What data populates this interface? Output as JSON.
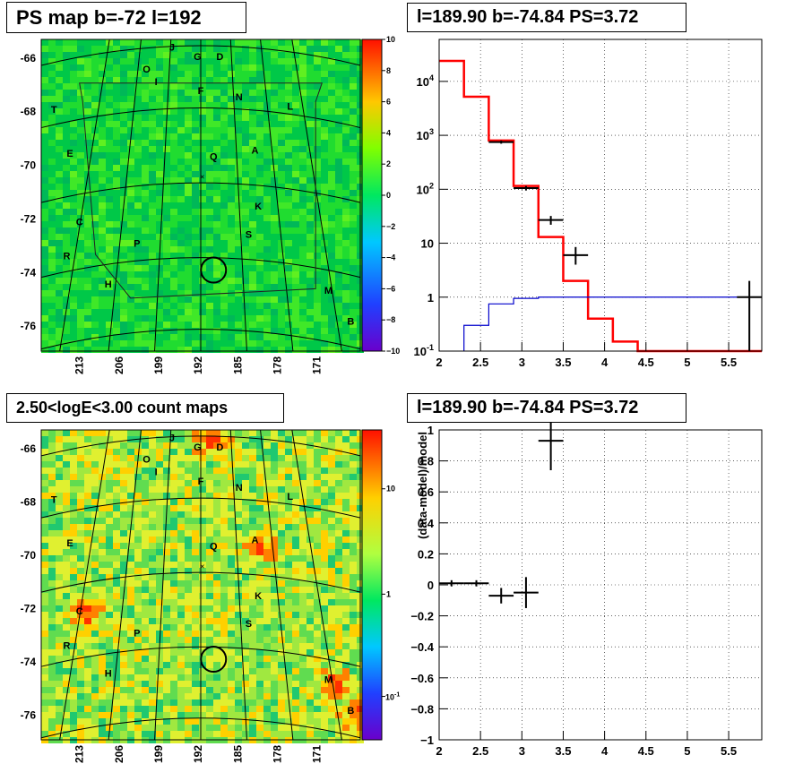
{
  "titles": {
    "panel1": "PS map b=-72 l=192",
    "panel2": "l=189.90 b=-74.84 PS=3.72",
    "panel3": "2.50<logE<3.00 count maps",
    "panel4": "l=189.90 b=-74.84 PS=3.72"
  },
  "map_axes": {
    "y_ticks": [
      "-66",
      "-68",
      "-70",
      "-72",
      "-74",
      "-76"
    ],
    "x_ticks": [
      "213",
      "206",
      "199",
      "192",
      "185",
      "178",
      "171"
    ]
  },
  "source_labels": [
    "J",
    "G",
    "D",
    "O",
    "I",
    "F",
    "N",
    "T",
    "L",
    "E",
    "Q",
    "A",
    "K",
    "C",
    "S",
    "P",
    "R",
    "H",
    "M",
    "B"
  ],
  "colorbar1": {
    "ticks": [
      "10",
      "8",
      "6",
      "4",
      "2",
      "0",
      "−2",
      "−4",
      "−6",
      "−8",
      "−10"
    ]
  },
  "colorbar2": {
    "ticks": [
      "10",
      "1",
      "10^-1"
    ]
  },
  "colors": {
    "red_model": "#ff0000",
    "blue_model": "#0000cc",
    "data": "#000000"
  },
  "chart_data": [
    {
      "type": "heatmap",
      "title": "PS map b=-72 l=192",
      "xlabel": "",
      "ylabel": "",
      "x_ticks": [
        "213",
        "206",
        "199",
        "192",
        "185",
        "178",
        "171"
      ],
      "y_ticks": [
        "-66",
        "-68",
        "-70",
        "-72",
        "-74",
        "-76"
      ],
      "colorbar_range": [
        -10,
        10
      ]
    },
    {
      "type": "line",
      "title": "l=189.90 b=-74.84 PS=3.72",
      "xlabel": "",
      "ylabel": "",
      "xlim": [
        2,
        5.9
      ],
      "ylim": [
        0.1,
        60000
      ],
      "yscale": "log",
      "x_ticks": [
        "2",
        "2.5",
        "3",
        "3.5",
        "4",
        "4.5",
        "5",
        "5.5"
      ],
      "y_ticks": [
        "10^-1",
        "1",
        "10",
        "10^2",
        "10^3",
        "10^4"
      ],
      "series": [
        {
          "edges": [
            2.0,
            2.3,
            2.6,
            2.9,
            3.2,
            3.5,
            3.8,
            4.1,
            4.4,
            5.9
          ],
          "values": [
            24000,
            5200,
            800,
            115,
            13,
            2,
            0.4,
            0.15,
            0.1
          ]
        },
        {
          "edges": [
            2.3,
            2.6,
            2.9,
            3.2,
            5.9
          ],
          "values": [
            0.3,
            0.75,
            0.95,
            1.0
          ]
        },
        {
          "x": [
            2.75,
            3.05,
            3.35,
            3.65,
            5.75
          ],
          "y": [
            750,
            105,
            27,
            6,
            1
          ],
          "xerr": 0.15,
          "yerr_lo": [
            700,
            95,
            22,
            4,
            0.05
          ],
          "yerr_hi": [
            800,
            115,
            32,
            8.5,
            2
          ]
        }
      ]
    },
    {
      "type": "heatmap",
      "title": "2.50<logE<3.00 count maps",
      "xlabel": "",
      "ylabel": "",
      "x_ticks": [
        "213",
        "206",
        "199",
        "192",
        "185",
        "178",
        "171"
      ],
      "y_ticks": [
        "-66",
        "-68",
        "-70",
        "-72",
        "-74",
        "-76"
      ],
      "colorbar_scale": "log"
    },
    {
      "type": "scatter",
      "title": "l=189.90 b=-74.84 PS=3.72",
      "xlabel": "",
      "ylabel": "(data-model)/model",
      "xlim": [
        2,
        5.9
      ],
      "ylim": [
        -1,
        1
      ],
      "x_ticks": [
        "2",
        "2.5",
        "3",
        "3.5",
        "4",
        "4.5",
        "5",
        "5.5"
      ],
      "y_ticks": [
        "1",
        "0.8",
        "0.6",
        "0.4",
        "0.2",
        "0",
        "−0.2",
        "−0.4",
        "−0.6",
        "−0.8",
        "−1"
      ],
      "series": [
        {
          "x": [
            2.15,
            2.45,
            2.75,
            3.05,
            3.35
          ],
          "y": [
            0.01,
            0.01,
            -0.07,
            -0.05,
            0.93
          ],
          "xerr": 0.15,
          "yerr": [
            0.02,
            0.02,
            0.05,
            0.1,
            0.19
          ]
        }
      ]
    }
  ]
}
